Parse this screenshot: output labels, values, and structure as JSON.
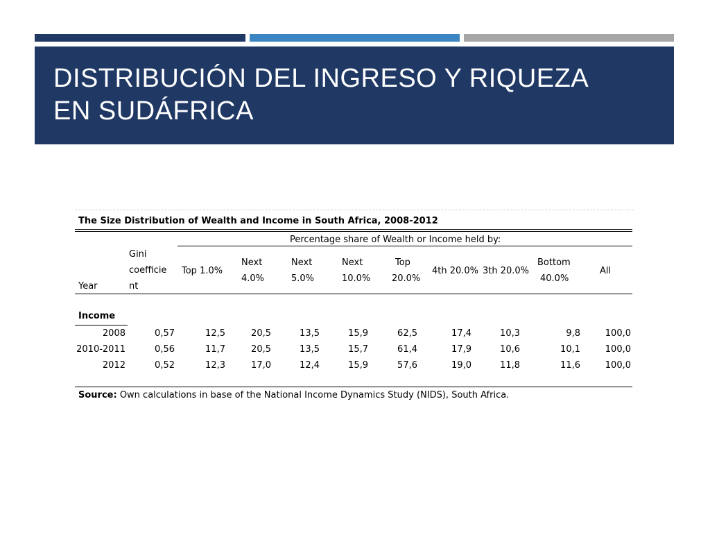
{
  "slide": {
    "title_line1": "DISTRIBUCIÓN DEL INGRESO Y RIQUEZA",
    "title_line2": "EN SUDÁFRICA"
  },
  "table": {
    "title": "The Size Distribution of Wealth and Income in South Africa, 2008-2012",
    "group_header": "Percentage share of Wealth or Income held by:",
    "col_year": "Year",
    "col_gini": [
      "Gini",
      "coefficie",
      "nt"
    ],
    "col_top1": "Top 1.0%",
    "col_next4": [
      "Next",
      "4.0%"
    ],
    "col_next5": [
      "Next",
      "5.0%"
    ],
    "col_next10": [
      "Next",
      "10.0%"
    ],
    "col_top20": [
      "Top",
      "20.0%"
    ],
    "col_4th": "4th 20.0%",
    "col_3th": "3th 20.0%",
    "col_bottom": [
      "Bottom",
      "40.0%"
    ],
    "col_all": "All",
    "section_label": "Income",
    "rows": [
      {
        "year": "2008",
        "gini": "0,57",
        "top1": "12,5",
        "next4": "20,5",
        "next5": "13,5",
        "next10": "15,9",
        "top20": "62,5",
        "q4": "17,4",
        "q3": "10,3",
        "bottom": "9,8",
        "all": "100,0"
      },
      {
        "year": "2010-2011",
        "gini": "0,56",
        "top1": "11,7",
        "next4": "20,5",
        "next5": "13,5",
        "next10": "15,7",
        "top20": "61,4",
        "q4": "17,9",
        "q3": "10,6",
        "bottom": "10,1",
        "all": "100,0"
      },
      {
        "year": "2012",
        "gini": "0,52",
        "top1": "12,3",
        "next4": "17,0",
        "next5": "12,4",
        "next10": "15,9",
        "top20": "57,6",
        "q4": "19,0",
        "q3": "11,8",
        "bottom": "11,6",
        "all": "100,0"
      }
    ],
    "source_label": "Source:",
    "source_text": " Own calculations in base of the National Income Dynamics Study (NIDS), South Africa."
  }
}
